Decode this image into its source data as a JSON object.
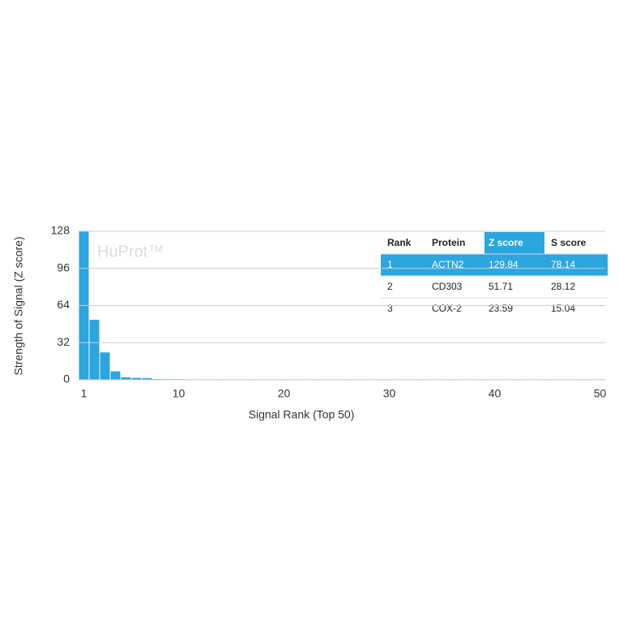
{
  "chart_data": {
    "type": "bar",
    "watermark": "HuProt™",
    "x_label": "Signal Rank (Top 50)",
    "y_label": "Strength of Signal (Z score)",
    "x": [
      1,
      2,
      3,
      4,
      5,
      6,
      7,
      8,
      9,
      10,
      11,
      12,
      13,
      14,
      15,
      16,
      17,
      18,
      19,
      20,
      21,
      22,
      23,
      24,
      25,
      26,
      27,
      28,
      29,
      30,
      31,
      32,
      33,
      34,
      35,
      36,
      37,
      38,
      39,
      40,
      41,
      42,
      43,
      44,
      45,
      46,
      47,
      48,
      49,
      50
    ],
    "values": [
      129.84,
      51.71,
      23.59,
      7.2,
      2.1,
      1.6,
      1.4,
      0.6,
      0.5,
      0.5,
      0.4,
      0.4,
      0.4,
      0.4,
      0.4,
      0.4,
      0.4,
      0.4,
      0.4,
      0.4,
      0.4,
      0.4,
      0.4,
      0.4,
      0.4,
      0.4,
      0.4,
      0.4,
      0.4,
      0.4,
      0.4,
      0.4,
      0.4,
      0.4,
      0.4,
      0.4,
      0.4,
      0.4,
      0.4,
      0.4,
      0.4,
      0.4,
      0.4,
      0.4,
      0.4,
      0.4,
      0.4,
      0.4,
      0.4,
      0.4
    ],
    "color": "#2ca6df",
    "xlim": [
      0.5,
      50.5
    ],
    "xticks": [
      1,
      10,
      20,
      30,
      40,
      50
    ],
    "ylim": [
      0,
      128
    ],
    "yticks": [
      0,
      32,
      64,
      96,
      128
    ],
    "grid": true
  },
  "table": {
    "columns": [
      "Rank",
      "Protein",
      "Z score",
      "S score"
    ],
    "rows": [
      [
        1,
        "ACTN2",
        129.84,
        78.14
      ],
      [
        2,
        "CD303",
        51.71,
        28.12
      ],
      [
        3,
        "COX-2",
        23.59,
        15.04
      ]
    ]
  }
}
